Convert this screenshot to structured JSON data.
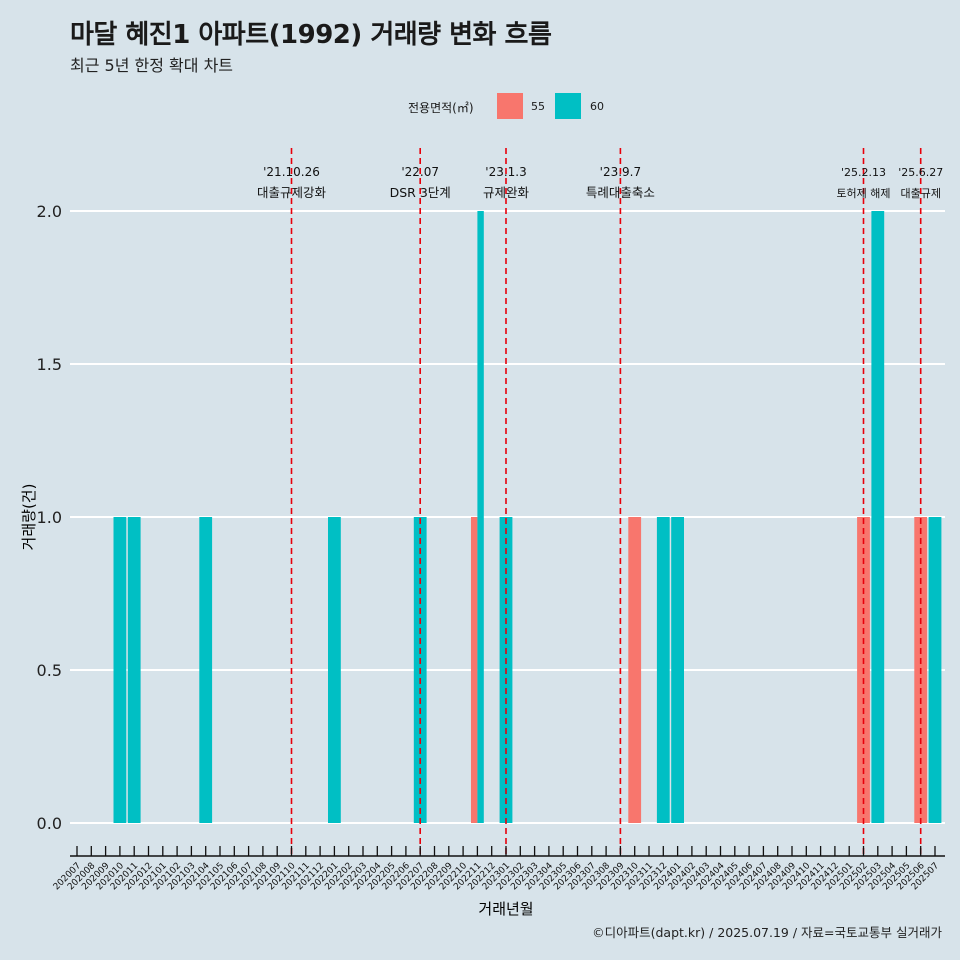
{
  "title": "마달 혜진1 아파트(1992) 거래량 변화 흐름",
  "subtitle": "최근 5년 한정 확대 차트",
  "caption": "©디아파트(dapt.kr) / 2025.07.19 / 자료=국토교통부 실거래가",
  "legend": {
    "title": "전용면적(㎡)",
    "items": [
      {
        "label": "55",
        "color": "#f8766d"
      },
      {
        "label": "60",
        "color": "#00bfc4"
      }
    ]
  },
  "chart_data": {
    "type": "bar",
    "xlabel": "거래년월",
    "ylabel": "거래량(건)",
    "ylim": [
      -0.1,
      2.1
    ],
    "yticks": [
      "0.0",
      "0.5",
      "1.0",
      "1.5",
      "2.0"
    ],
    "grid": true,
    "legend_position": "top",
    "categories": [
      "202007",
      "202008",
      "202009",
      "202010",
      "202011",
      "202012",
      "202101",
      "202102",
      "202103",
      "202104",
      "202105",
      "202106",
      "202107",
      "202108",
      "202109",
      "202110",
      "202111",
      "202112",
      "202201",
      "202202",
      "202203",
      "202204",
      "202205",
      "202206",
      "202207",
      "202208",
      "202209",
      "202210",
      "202211",
      "202212",
      "202301",
      "202302",
      "202303",
      "202304",
      "202305",
      "202306",
      "202307",
      "202308",
      "202309",
      "202310",
      "202311",
      "202312",
      "202401",
      "202402",
      "202403",
      "202404",
      "202405",
      "202406",
      "202407",
      "202408",
      "202409",
      "202410",
      "202411",
      "202412",
      "202501",
      "202502",
      "202503",
      "202504",
      "202505",
      "202506",
      "202507"
    ],
    "series": [
      {
        "name": "55",
        "color": "#f8766d",
        "points": [
          {
            "x": "202211",
            "y": 1
          },
          {
            "x": "202310",
            "y": 1
          },
          {
            "x": "202502",
            "y": 1
          },
          {
            "x": "202506",
            "y": 1
          }
        ]
      },
      {
        "name": "60",
        "color": "#00bfc4",
        "points": [
          {
            "x": "202010",
            "y": 1
          },
          {
            "x": "202011",
            "y": 1
          },
          {
            "x": "202104",
            "y": 1
          },
          {
            "x": "202201",
            "y": 1
          },
          {
            "x": "202207",
            "y": 1
          },
          {
            "x": "202211",
            "y": 2
          },
          {
            "x": "202301",
            "y": 1
          },
          {
            "x": "202312",
            "y": 1
          },
          {
            "x": "202401",
            "y": 1
          },
          {
            "x": "202503",
            "y": 2
          },
          {
            "x": "202507",
            "y": 1
          }
        ]
      }
    ],
    "events": [
      {
        "date": "'21.10.26",
        "label": "대출규제강화",
        "x": "202110"
      },
      {
        "date": "'22.07",
        "label": "DSR 3단계",
        "x": "202207"
      },
      {
        "date": "'23.1.3",
        "label": "규제완화",
        "x": "202301"
      },
      {
        "date": "'23.9.7",
        "label": "특례대출축소",
        "x": "202309"
      },
      {
        "date": "'25.2.13",
        "label": "토허제 해제",
        "x": "202502"
      },
      {
        "date": "'25.6.27",
        "label": "대출규제",
        "x": "202506"
      }
    ]
  }
}
